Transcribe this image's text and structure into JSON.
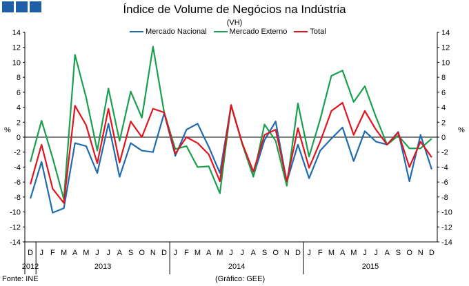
{
  "header": {
    "title": "Índice de Volume de Negócios na Indústria",
    "subtitle": "(VH)"
  },
  "footer": {
    "source": "Fonte: INE",
    "credit": "(Gráfico: GEE)"
  },
  "chart_data": {
    "type": "line",
    "title": "Índice de Volume de Negócios na Indústria",
    "subtitle": "(VH)",
    "ylabel_left": "%",
    "ylabel_right": "%",
    "ylim": [
      -14,
      14
    ],
    "yticks": [
      14,
      12,
      10,
      8,
      6,
      4,
      2,
      0,
      -2,
      -4,
      -6,
      -8,
      -10,
      -12,
      -14
    ],
    "grid": false,
    "legend_position": "top-center",
    "months": [
      "D",
      "J",
      "F",
      "M",
      "A",
      "M",
      "J",
      "J",
      "A",
      "S",
      "O",
      "N",
      "D",
      "J",
      "F",
      "M",
      "A",
      "M",
      "J",
      "J",
      "A",
      "S",
      "O",
      "N",
      "D",
      "J",
      "F",
      "M",
      "A",
      "M",
      "J",
      "J",
      "A",
      "S",
      "O",
      "N",
      "D"
    ],
    "years": [
      {
        "label": "2012",
        "start": 0,
        "end": 0
      },
      {
        "label": "2013",
        "start": 1,
        "end": 12
      },
      {
        "label": "2014",
        "start": 13,
        "end": 24
      },
      {
        "label": "2015",
        "start": 25,
        "end": 36
      }
    ],
    "series": [
      {
        "name": "Mercado Nacional",
        "color": "#1f6bb0",
        "values": [
          -8.2,
          -3.3,
          -10.1,
          -9.5,
          -0.8,
          -1.2,
          -4.8,
          1.8,
          -5.3,
          -0.8,
          -1.8,
          -2.0,
          3.2,
          -2.5,
          1.0,
          1.8,
          -1.3,
          -4.8,
          4.2,
          -0.8,
          -5.2,
          -0.4,
          2.1,
          -6.0,
          -1.0,
          -5.5,
          -1.8,
          -0.2,
          1.3,
          -3.2,
          0.8,
          -0.6,
          -1.0,
          0.7,
          -5.9,
          0.3,
          -4.3
        ]
      },
      {
        "name": "Mercado Externo",
        "color": "#1a9f4e",
        "values": [
          -3.3,
          2.2,
          -2.8,
          -8.3,
          11.0,
          5.3,
          -1.8,
          6.5,
          -0.5,
          6.1,
          2.6,
          12.1,
          3.3,
          -1.6,
          -1.2,
          -4.0,
          -3.9,
          -7.5,
          4.3,
          -0.9,
          -5.3,
          1.7,
          -0.5,
          -6.5,
          4.5,
          -2.6,
          2.4,
          8.2,
          8.9,
          4.7,
          6.8,
          2.7,
          -1.0,
          0.2,
          -1.5,
          -1.5,
          -0.2
        ]
      },
      {
        "name": "Total",
        "color": "#e0141e",
        "values": [
          -6.3,
          -1.0,
          -6.9,
          -8.8,
          4.2,
          1.6,
          -3.5,
          3.8,
          -3.4,
          2.1,
          0.0,
          3.8,
          3.3,
          -2.2,
          0.0,
          -0.8,
          -2.3,
          -5.9,
          4.3,
          -0.8,
          -4.6,
          0.3,
          1.0,
          -5.9,
          1.2,
          -4.1,
          -0.6,
          3.5,
          4.6,
          0.3,
          3.5,
          1.0,
          -1.0,
          0.6,
          -4.0,
          -0.6,
          -2.7
        ]
      }
    ]
  }
}
